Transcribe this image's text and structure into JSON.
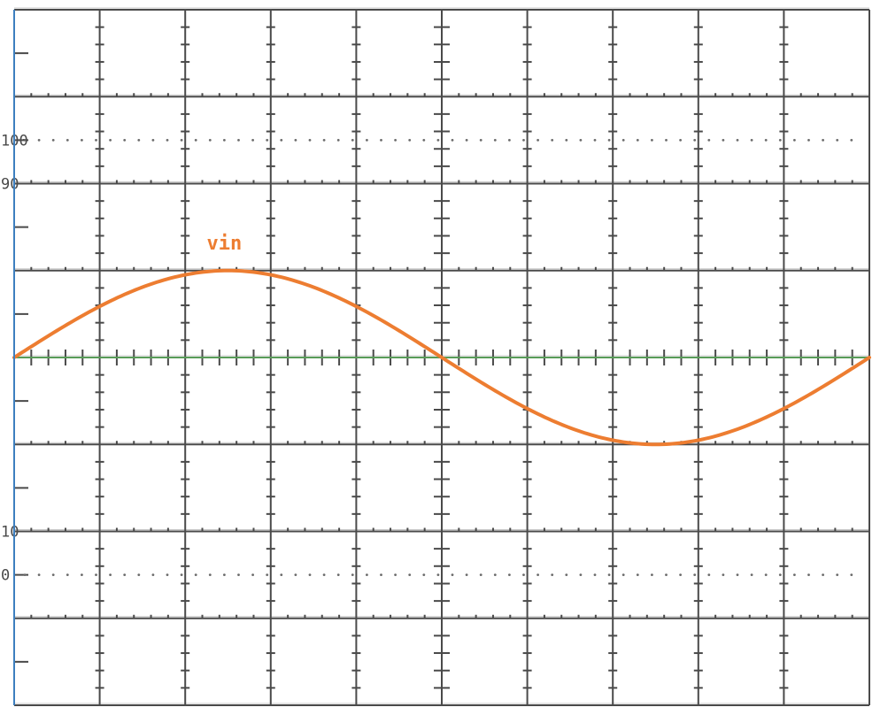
{
  "chart_data": {
    "type": "line",
    "title": "",
    "xlabel": "",
    "ylabel": "",
    "divisions": {
      "x": 10,
      "y": 8
    },
    "xlim": [
      0,
      10
    ],
    "ylim": [
      -4,
      4
    ],
    "grid": true,
    "reference_levels": [
      {
        "label": "100",
        "value": 2.5
      },
      {
        "label": "90",
        "value": 2.0
      },
      {
        "label": "10",
        "value": -2.0
      },
      {
        "label": "0",
        "value": -2.5
      }
    ],
    "series": [
      {
        "name": "vin",
        "color": "#ed7d31",
        "amplitude": 1.0,
        "offset": 0,
        "period": 10,
        "phase": 0,
        "x": [
          0,
          0.5,
          1,
          1.5,
          2,
          2.5,
          3,
          3.5,
          4,
          4.5,
          5,
          5.5,
          6,
          6.5,
          7,
          7.5,
          8,
          8.5,
          9,
          9.5,
          10
        ],
        "y": [
          0,
          0.309,
          0.588,
          0.809,
          0.951,
          1.0,
          0.951,
          0.809,
          0.588,
          0.309,
          0,
          -0.309,
          -0.588,
          -0.809,
          -0.951,
          -1.0,
          -0.951,
          -0.809,
          -0.588,
          -0.309,
          0
        ]
      }
    ],
    "baseline": {
      "value": 0,
      "color": "#5cb85c"
    }
  }
}
